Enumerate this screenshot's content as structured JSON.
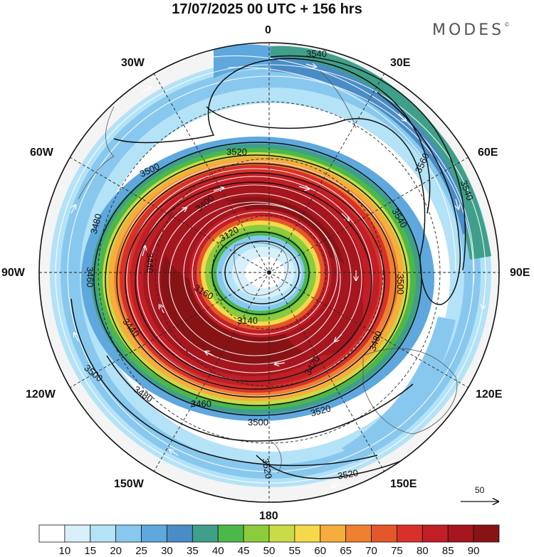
{
  "title": "17/07/2025  00 UTC  + 156 hrs",
  "brand": "MODES",
  "brand_mark": "©",
  "longitude_labels": {
    "lon_0": "0",
    "lon_30e": "30E",
    "lon_60e": "60E",
    "lon_90e": "90E",
    "lon_120e": "120E",
    "lon_150e": "150E",
    "lon_180": "180",
    "lon_150w": "150W",
    "lon_120w": "120W",
    "lon_90w": "90W",
    "lon_60w": "60W",
    "lon_30w": "30W"
  },
  "reference_vector_label": "50",
  "colorbar": {
    "ticks": [
      "10",
      "15",
      "20",
      "25",
      "30",
      "35",
      "40",
      "45",
      "50",
      "55",
      "60",
      "65",
      "70",
      "75",
      "80",
      "85",
      "90"
    ],
    "colors": [
      "#ffffff",
      "#d7f0fc",
      "#b4e2f7",
      "#88c8ee",
      "#5ea8de",
      "#4a8cc6",
      "#3f9f8a",
      "#4cb84a",
      "#8ccb3c",
      "#c9db47",
      "#f5d94a",
      "#f6ad3b",
      "#ee8030",
      "#e4572a",
      "#d8312a",
      "#c11e26",
      "#a5161f",
      "#881315"
    ]
  },
  "contour_labels": {
    "c3540_a": "3540",
    "c3540_b": "3540",
    "c3540_c": "3540",
    "c3560": "3560",
    "c3520_a": "3520",
    "c3520_b": "3520",
    "c3520_c": "3520",
    "c3520_d": "3520",
    "c3500_a": "3500",
    "c3500_b": "3500",
    "c3500_c": "3500",
    "c3500_d": "3500",
    "c3480_a": "3480",
    "c3480_b": "3480",
    "c3480_c": "3480",
    "c3460_a": "3460",
    "c3460_b": "3460",
    "c3440_a": "3440",
    "c3440_b": "3440",
    "c3420": "3420",
    "c3400": "3400",
    "c3160": "3160",
    "c3140": "3140",
    "c3120": "3120"
  }
}
